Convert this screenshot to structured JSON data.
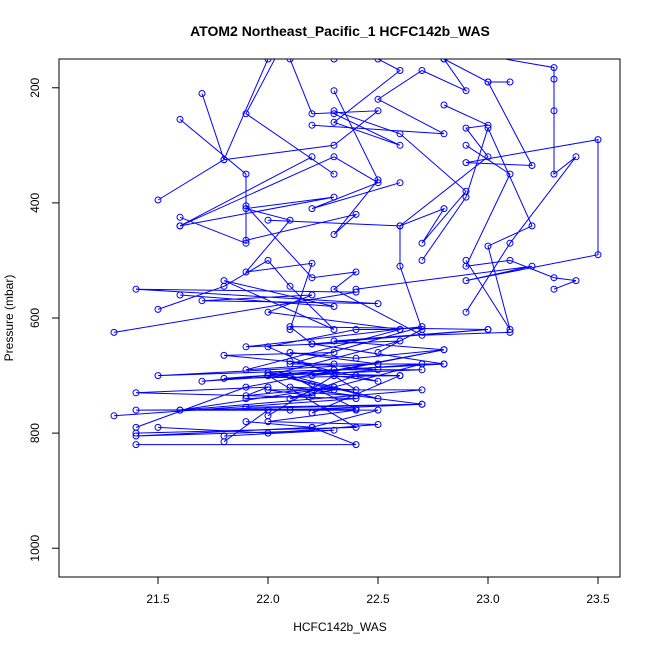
{
  "chart_data": {
    "type": "line",
    "title": "ATOM2 Northeast_Pacific_1 HCFC142b_WAS",
    "xlabel": "HCFC142b_WAS",
    "ylabel": "Pressure (mbar)",
    "xlim": [
      21.05,
      23.6
    ],
    "ylim": [
      1050,
      150
    ],
    "y_reversed": true,
    "x_ticks": [
      21.5,
      22.0,
      22.5,
      23.0,
      23.5
    ],
    "x_tick_labels": [
      "21.5",
      "22.0",
      "22.5",
      "23.0",
      "23.5"
    ],
    "y_ticks": [
      200,
      400,
      600,
      800,
      1000
    ],
    "y_tick_labels": [
      "200",
      "400",
      "600",
      "800",
      "1000"
    ],
    "series_color": "#0000ff",
    "grid": false,
    "legend": "none",
    "series": [
      {
        "points": [
          [
            21.4,
            820
          ],
          [
            22.4,
            820
          ],
          [
            22.2,
            790
          ],
          [
            21.4,
            805
          ],
          [
            22.3,
            795
          ],
          [
            21.8,
            805
          ]
        ]
      },
      {
        "points": [
          [
            21.8,
            815
          ],
          [
            22.0,
            760
          ],
          [
            21.4,
            760
          ],
          [
            22.4,
            758
          ],
          [
            22.1,
            700
          ],
          [
            21.7,
            710
          ],
          [
            22.3,
            690
          ],
          [
            21.5,
            700
          ],
          [
            22.5,
            680
          ]
        ]
      },
      {
        "points": [
          [
            21.3,
            770
          ],
          [
            22.4,
            740
          ],
          [
            21.4,
            730
          ],
          [
            22.0,
            720
          ],
          [
            21.9,
            735
          ],
          [
            22.3,
            720
          ],
          [
            21.6,
            760
          ],
          [
            22.7,
            750
          ],
          [
            22.1,
            760
          ]
        ]
      },
      {
        "points": [
          [
            21.9,
            740
          ],
          [
            22.2,
            735
          ],
          [
            22.0,
            725
          ],
          [
            22.7,
            725
          ],
          [
            21.6,
            760
          ],
          [
            22.5,
            760
          ],
          [
            22.2,
            790
          ],
          [
            21.9,
            780
          ]
        ]
      },
      {
        "points": [
          [
            21.4,
            800
          ],
          [
            22.4,
            790
          ],
          [
            22.0,
            700
          ],
          [
            22.6,
            640
          ],
          [
            21.9,
            650
          ],
          [
            22.7,
            615
          ],
          [
            22.1,
            680
          ],
          [
            22.8,
            680
          ]
        ]
      },
      {
        "points": [
          [
            22.0,
            770
          ],
          [
            22.3,
            700
          ],
          [
            22.0,
            650
          ],
          [
            22.4,
            620
          ],
          [
            22.6,
            620
          ],
          [
            21.9,
            690
          ],
          [
            22.3,
            680
          ]
        ]
      },
      {
        "points": [
          [
            22.1,
            700
          ],
          [
            22.5,
            740
          ],
          [
            22.0,
            695
          ],
          [
            22.6,
            700
          ],
          [
            21.8,
            705
          ],
          [
            22.7,
            680
          ],
          [
            22.2,
            730
          ],
          [
            22.4,
            735
          ]
        ]
      },
      {
        "points": [
          [
            21.5,
            585
          ],
          [
            21.8,
            545
          ],
          [
            22.0,
            500
          ],
          [
            22.1,
            545
          ],
          [
            22.3,
            620
          ],
          [
            21.8,
            535
          ],
          [
            22.3,
            580
          ],
          [
            21.6,
            560
          ]
        ]
      },
      {
        "points": [
          [
            21.3,
            625
          ],
          [
            22.4,
            555
          ],
          [
            21.4,
            550
          ],
          [
            22.5,
            575
          ],
          [
            21.7,
            570
          ],
          [
            22.2,
            560
          ],
          [
            22.0,
            590
          ],
          [
            22.6,
            620
          ]
        ]
      },
      {
        "points": [
          [
            22.1,
            620
          ],
          [
            22.2,
            505
          ],
          [
            21.9,
            520
          ],
          [
            22.1,
            430
          ],
          [
            21.9,
            410
          ],
          [
            22.3,
            390
          ],
          [
            21.6,
            440
          ],
          [
            22.2,
            320
          ]
        ]
      },
      {
        "points": [
          [
            21.5,
            395
          ],
          [
            21.8,
            325
          ],
          [
            22.0,
            150
          ],
          [
            22.1,
            100
          ],
          [
            21.9,
            245
          ],
          [
            22.3,
            350
          ]
        ]
      },
      {
        "points": [
          [
            21.6,
            425
          ],
          [
            21.9,
            470
          ],
          [
            21.9,
            405
          ],
          [
            22.2,
            530
          ],
          [
            22.4,
            520
          ],
          [
            22.3,
            550
          ],
          [
            22.7,
            630
          ],
          [
            23.1,
            625
          ]
        ]
      },
      {
        "points": [
          [
            21.6,
            440
          ],
          [
            22.3,
            320
          ],
          [
            22.5,
            365
          ],
          [
            22.2,
            410
          ],
          [
            22.6,
            365
          ]
        ]
      },
      {
        "points": [
          [
            21.7,
            210
          ],
          [
            21.8,
            325
          ],
          [
            22.3,
            300
          ],
          [
            22.5,
            240
          ],
          [
            22.2,
            245
          ],
          [
            22.1,
            150
          ],
          [
            22.3,
            150
          ]
        ]
      },
      {
        "points": [
          [
            21.6,
            255
          ],
          [
            21.9,
            350
          ],
          [
            21.9,
            465
          ],
          [
            22.4,
            420
          ],
          [
            22.3,
            455
          ],
          [
            22.5,
            360
          ],
          [
            22.3,
            205
          ]
        ]
      },
      {
        "points": [
          [
            22.3,
            245
          ],
          [
            22.6,
            300
          ],
          [
            22.3,
            260
          ],
          [
            22.6,
            170
          ],
          [
            22.5,
            150
          ],
          [
            22.8,
            150
          ],
          [
            23.0,
            190
          ],
          [
            23.1,
            190
          ]
        ]
      },
      {
        "points": [
          [
            22.5,
            660
          ],
          [
            22.7,
            620
          ],
          [
            22.6,
            510
          ],
          [
            22.6,
            440
          ],
          [
            23.0,
            320
          ],
          [
            22.9,
            270
          ],
          [
            23.0,
            265
          ],
          [
            22.8,
            230
          ]
        ]
      },
      {
        "points": [
          [
            22.9,
            300
          ],
          [
            23.1,
            350
          ],
          [
            22.9,
            510
          ],
          [
            23.1,
            500
          ],
          [
            23.3,
            530
          ],
          [
            23.4,
            535
          ],
          [
            23.3,
            550
          ]
        ]
      },
      {
        "points": [
          [
            22.9,
            500
          ],
          [
            23.1,
            620
          ],
          [
            23.0,
            475
          ],
          [
            23.2,
            440
          ],
          [
            23.0,
            270
          ],
          [
            22.9,
            390
          ],
          [
            22.7,
            500
          ]
        ]
      },
      {
        "points": [
          [
            22.9,
            590
          ],
          [
            23.1,
            470
          ],
          [
            23.4,
            320
          ],
          [
            23.3,
            350
          ],
          [
            23.3,
            240
          ],
          [
            23.3,
            185
          ],
          [
            23.3,
            165
          ],
          [
            23.0,
            145
          ]
        ]
      },
      {
        "points": [
          [
            23.0,
            190
          ],
          [
            23.2,
            335
          ],
          [
            22.9,
            330
          ],
          [
            23.5,
            290
          ],
          [
            23.5,
            490
          ],
          [
            22.9,
            535
          ],
          [
            23.2,
            510
          ],
          [
            22.4,
            550
          ]
        ]
      },
      {
        "points": [
          [
            23.0,
            620
          ],
          [
            22.1,
            615
          ],
          [
            22.2,
            645
          ],
          [
            22.8,
            680
          ],
          [
            22.3,
            690
          ],
          [
            22.7,
            690
          ],
          [
            22.0,
            700
          ]
        ]
      },
      {
        "points": [
          [
            21.9,
            755
          ],
          [
            22.7,
            750
          ],
          [
            22.1,
            720
          ],
          [
            22.4,
            725
          ],
          [
            22.3,
            700
          ],
          [
            22.5,
            710
          ],
          [
            22.1,
            675
          ]
        ]
      },
      {
        "points": [
          [
            21.4,
            790
          ],
          [
            21.9,
            720
          ],
          [
            22.8,
            655
          ],
          [
            22.2,
            700
          ],
          [
            22.5,
            690
          ],
          [
            21.8,
            665
          ],
          [
            22.3,
            660
          ]
        ]
      },
      {
        "points": [
          [
            22.0,
            760
          ],
          [
            22.4,
            760
          ],
          [
            22.0,
            780
          ],
          [
            22.5,
            785
          ],
          [
            22.0,
            800
          ],
          [
            21.5,
            790
          ]
        ]
      },
      {
        "points": [
          [
            22.2,
            645
          ],
          [
            23.0,
            620
          ],
          [
            22.3,
            640
          ],
          [
            22.8,
            655
          ],
          [
            22.4,
            670
          ],
          [
            22.1,
            660
          ],
          [
            22.5,
            680
          ]
        ]
      },
      {
        "points": [
          [
            22.0,
            695
          ],
          [
            22.2,
            715
          ],
          [
            22.3,
            725
          ],
          [
            22.1,
            740
          ],
          [
            22.4,
            700
          ],
          [
            22.6,
            700
          ],
          [
            22.2,
            765
          ]
        ]
      },
      {
        "points": [
          [
            22.0,
            430
          ],
          [
            22.6,
            440
          ],
          [
            22.8,
            410
          ],
          [
            22.7,
            470
          ],
          [
            22.9,
            380
          ],
          [
            22.6,
            280
          ],
          [
            22.3,
            240
          ]
        ]
      },
      {
        "points": [
          [
            22.2,
            265
          ],
          [
            22.8,
            280
          ],
          [
            22.5,
            220
          ],
          [
            22.7,
            170
          ],
          [
            22.9,
            205
          ],
          [
            22.8,
            150
          ]
        ]
      }
    ]
  }
}
